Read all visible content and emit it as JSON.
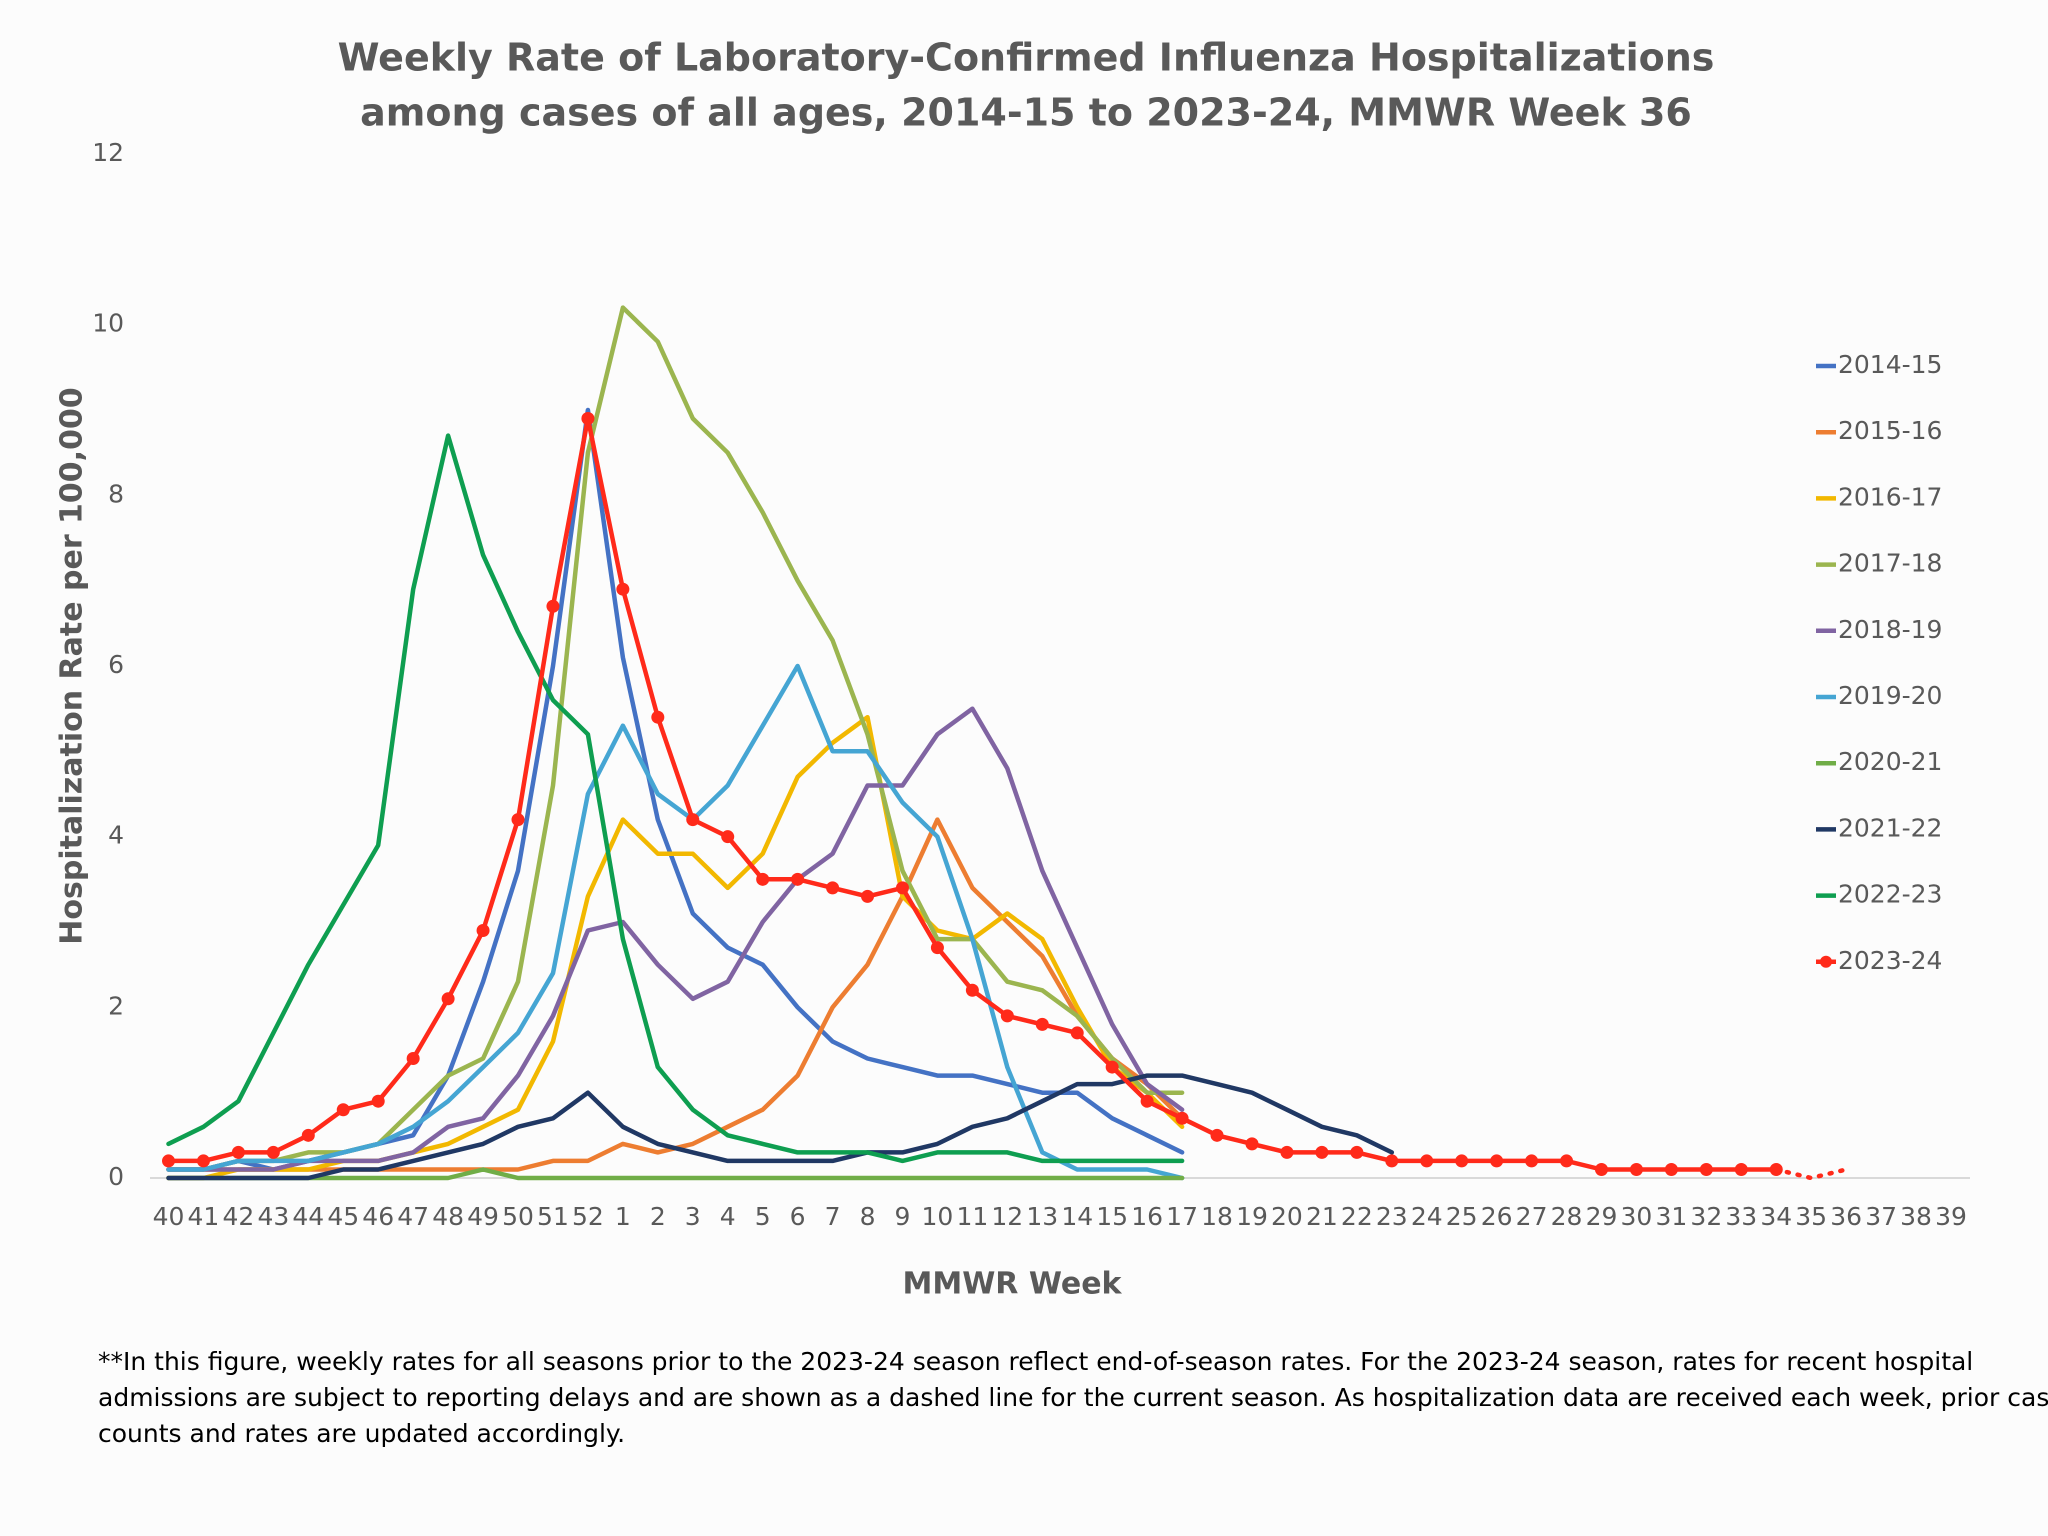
{
  "chart_data": {
    "type": "line",
    "title": [
      "Weekly Rate of Laboratory-Confirmed Influenza Hospitalizations",
      "among cases of all ages, 2014-15 to 2023-24, MMWR Week 36"
    ],
    "y_label": "Hospitalization Rate per 100,000",
    "x_label": "MMWR Week",
    "footnote": [
      "**In this figure, weekly rates for all seasons prior to the 2023-24 season reflect end-of-season rates. For the 2023-24 season, rates for recent hospital",
      "admissions are subject to reporting delays and are shown as a dashed line for the current season. As hospitalization data are received each week, prior case",
      "counts and rates are updated accordingly."
    ],
    "categories": [
      "40",
      "41",
      "42",
      "43",
      "44",
      "45",
      "46",
      "47",
      "48",
      "49",
      "50",
      "51",
      "52",
      "1",
      "2",
      "3",
      "4",
      "5",
      "6",
      "7",
      "8",
      "9",
      "10",
      "11",
      "12",
      "13",
      "14",
      "15",
      "16",
      "17",
      "18",
      "19",
      "20",
      "21",
      "22",
      "23",
      "24",
      "25",
      "26",
      "27",
      "28",
      "29",
      "30",
      "31",
      "32",
      "33",
      "34",
      "35",
      "36",
      "37",
      "38",
      "39"
    ],
    "ylim": [
      0,
      12
    ],
    "yticks": [
      0,
      2,
      4,
      6,
      8,
      10,
      12
    ],
    "grid": false,
    "legend": "right",
    "series": [
      {
        "name": "2014-15",
        "color": "#4472c4",
        "values": [
          0.1,
          0.1,
          0.2,
          0.1,
          0.2,
          0.3,
          0.4,
          0.5,
          1.2,
          2.3,
          3.6,
          6.0,
          9.0,
          6.1,
          4.2,
          3.1,
          2.7,
          2.5,
          2.0,
          1.6,
          1.4,
          1.3,
          1.2,
          1.2,
          1.1,
          1.0,
          1.0,
          0.7,
          0.5,
          0.3,
          null,
          null,
          null,
          null,
          null,
          null,
          null,
          null,
          null,
          null,
          null,
          null,
          null,
          null,
          null,
          null,
          null,
          null,
          null,
          null,
          null,
          null
        ]
      },
      {
        "name": "2015-16",
        "color": "#ed7d31",
        "values": [
          0.1,
          0.1,
          0.1,
          0.1,
          0.1,
          0.1,
          0.1,
          0.1,
          0.1,
          0.1,
          0.1,
          0.2,
          0.2,
          0.4,
          0.3,
          0.4,
          0.6,
          0.8,
          1.2,
          2.0,
          2.5,
          3.3,
          4.2,
          3.4,
          3.0,
          2.6,
          1.9,
          1.4,
          1.1,
          0.7,
          null,
          null,
          null,
          null,
          null,
          null,
          null,
          null,
          null,
          null,
          null,
          null,
          null,
          null,
          null,
          null,
          null,
          null,
          null,
          null,
          null,
          null
        ]
      },
      {
        "name": "2016-17",
        "color": "#f2b800",
        "values": [
          0.0,
          0.0,
          0.1,
          0.1,
          0.1,
          0.2,
          0.2,
          0.3,
          0.4,
          0.6,
          0.8,
          1.6,
          3.3,
          4.2,
          3.8,
          3.8,
          3.4,
          3.8,
          4.7,
          5.1,
          5.4,
          3.3,
          2.9,
          2.8,
          3.1,
          2.8,
          2.0,
          1.3,
          1.0,
          0.6,
          null,
          null,
          null,
          null,
          null,
          null,
          null,
          null,
          null,
          null,
          null,
          null,
          null,
          null,
          null,
          null,
          null,
          null,
          null,
          null,
          null,
          null
        ]
      },
      {
        "name": "2017-18",
        "color": "#9bb54f",
        "values": [
          0.1,
          0.1,
          0.2,
          0.2,
          0.3,
          0.3,
          0.4,
          0.8,
          1.2,
          1.4,
          2.3,
          4.6,
          8.5,
          10.2,
          9.8,
          8.9,
          8.5,
          7.8,
          7.0,
          6.3,
          5.2,
          3.6,
          2.8,
          2.8,
          2.3,
          2.2,
          1.9,
          1.4,
          1.0,
          1.0,
          null,
          null,
          null,
          null,
          null,
          null,
          null,
          null,
          null,
          null,
          null,
          null,
          null,
          null,
          null,
          null,
          null,
          null,
          null,
          null,
          null,
          null
        ]
      },
      {
        "name": "2018-19",
        "color": "#8064a2",
        "values": [
          0.1,
          0.1,
          0.1,
          0.1,
          0.2,
          0.2,
          0.2,
          0.3,
          0.6,
          0.7,
          1.2,
          1.9,
          2.9,
          3.0,
          2.5,
          2.1,
          2.3,
          3.0,
          3.5,
          3.8,
          4.6,
          4.6,
          5.2,
          5.5,
          4.8,
          3.6,
          2.7,
          1.8,
          1.1,
          0.8,
          null,
          null,
          null,
          null,
          null,
          null,
          null,
          null,
          null,
          null,
          null,
          null,
          null,
          null,
          null,
          null,
          null,
          null,
          null,
          null,
          null,
          null
        ]
      },
      {
        "name": "2019-20",
        "color": "#45a5d3",
        "values": [
          0.1,
          0.1,
          0.2,
          0.2,
          0.2,
          0.3,
          0.4,
          0.6,
          0.9,
          1.3,
          1.7,
          2.4,
          4.5,
          5.3,
          4.5,
          4.2,
          4.6,
          5.3,
          6.0,
          5.0,
          5.0,
          4.4,
          4.0,
          2.8,
          1.3,
          0.3,
          0.1,
          0.1,
          0.1,
          0.0,
          null,
          null,
          null,
          null,
          null,
          null,
          null,
          null,
          null,
          null,
          null,
          null,
          null,
          null,
          null,
          null,
          null,
          null,
          null,
          null,
          null,
          null
        ]
      },
      {
        "name": "2020-21",
        "color": "#70ad47",
        "values": [
          0.0,
          0.0,
          0.0,
          0.0,
          0.0,
          0.0,
          0.0,
          0.0,
          0.0,
          0.1,
          0.0,
          0.0,
          0.0,
          0.0,
          0.0,
          0.0,
          0.0,
          0.0,
          0.0,
          0.0,
          0.0,
          0.0,
          0.0,
          0.0,
          0.0,
          0.0,
          0.0,
          0.0,
          0.0,
          0.0,
          null,
          null,
          null,
          null,
          null,
          null,
          null,
          null,
          null,
          null,
          null,
          null,
          null,
          null,
          null,
          null,
          null,
          null,
          null,
          null,
          null,
          null
        ]
      },
      {
        "name": "2021-22",
        "color": "#203864",
        "values": [
          0.0,
          0.0,
          0.0,
          0.0,
          0.0,
          0.1,
          0.1,
          0.2,
          0.3,
          0.4,
          0.6,
          0.7,
          1.0,
          0.6,
          0.4,
          0.3,
          0.2,
          0.2,
          0.2,
          0.2,
          0.3,
          0.3,
          0.4,
          0.6,
          0.7,
          0.9,
          1.1,
          1.1,
          1.2,
          1.2,
          1.1,
          1.0,
          0.8,
          0.6,
          0.5,
          0.3,
          null,
          null,
          null,
          null,
          null,
          null,
          null,
          null,
          null,
          null,
          null,
          null,
          null,
          null,
          null,
          null
        ]
      },
      {
        "name": "2022-23",
        "color": "#0e9e50",
        "values": [
          0.4,
          0.6,
          0.9,
          1.7,
          2.5,
          3.2,
          3.9,
          6.9,
          8.7,
          7.3,
          6.4,
          5.6,
          5.2,
          2.8,
          1.3,
          0.8,
          0.5,
          0.4,
          0.3,
          0.3,
          0.3,
          0.2,
          0.3,
          0.3,
          0.3,
          0.2,
          0.2,
          0.2,
          0.2,
          0.2,
          null,
          null,
          null,
          null,
          null,
          null,
          null,
          null,
          null,
          null,
          null,
          null,
          null,
          null,
          null,
          null,
          null,
          null,
          null,
          null,
          null,
          null
        ]
      },
      {
        "name": "2023-24",
        "color": "#ff2a1a",
        "markers": true,
        "dashed_from": "34",
        "values": [
          0.2,
          0.2,
          0.3,
          0.3,
          0.5,
          0.8,
          0.9,
          1.4,
          2.1,
          2.9,
          4.2,
          6.7,
          8.9,
          6.9,
          5.4,
          4.2,
          4.0,
          3.5,
          3.5,
          3.4,
          3.3,
          3.4,
          2.7,
          2.2,
          1.9,
          1.8,
          1.7,
          1.3,
          0.9,
          0.7,
          0.5,
          0.4,
          0.3,
          0.3,
          0.3,
          0.2,
          0.2,
          0.2,
          0.2,
          0.2,
          0.2,
          0.1,
          0.1,
          0.1,
          0.1,
          0.1,
          0.1,
          0.0,
          0.1,
          null,
          null,
          null
        ]
      }
    ]
  }
}
